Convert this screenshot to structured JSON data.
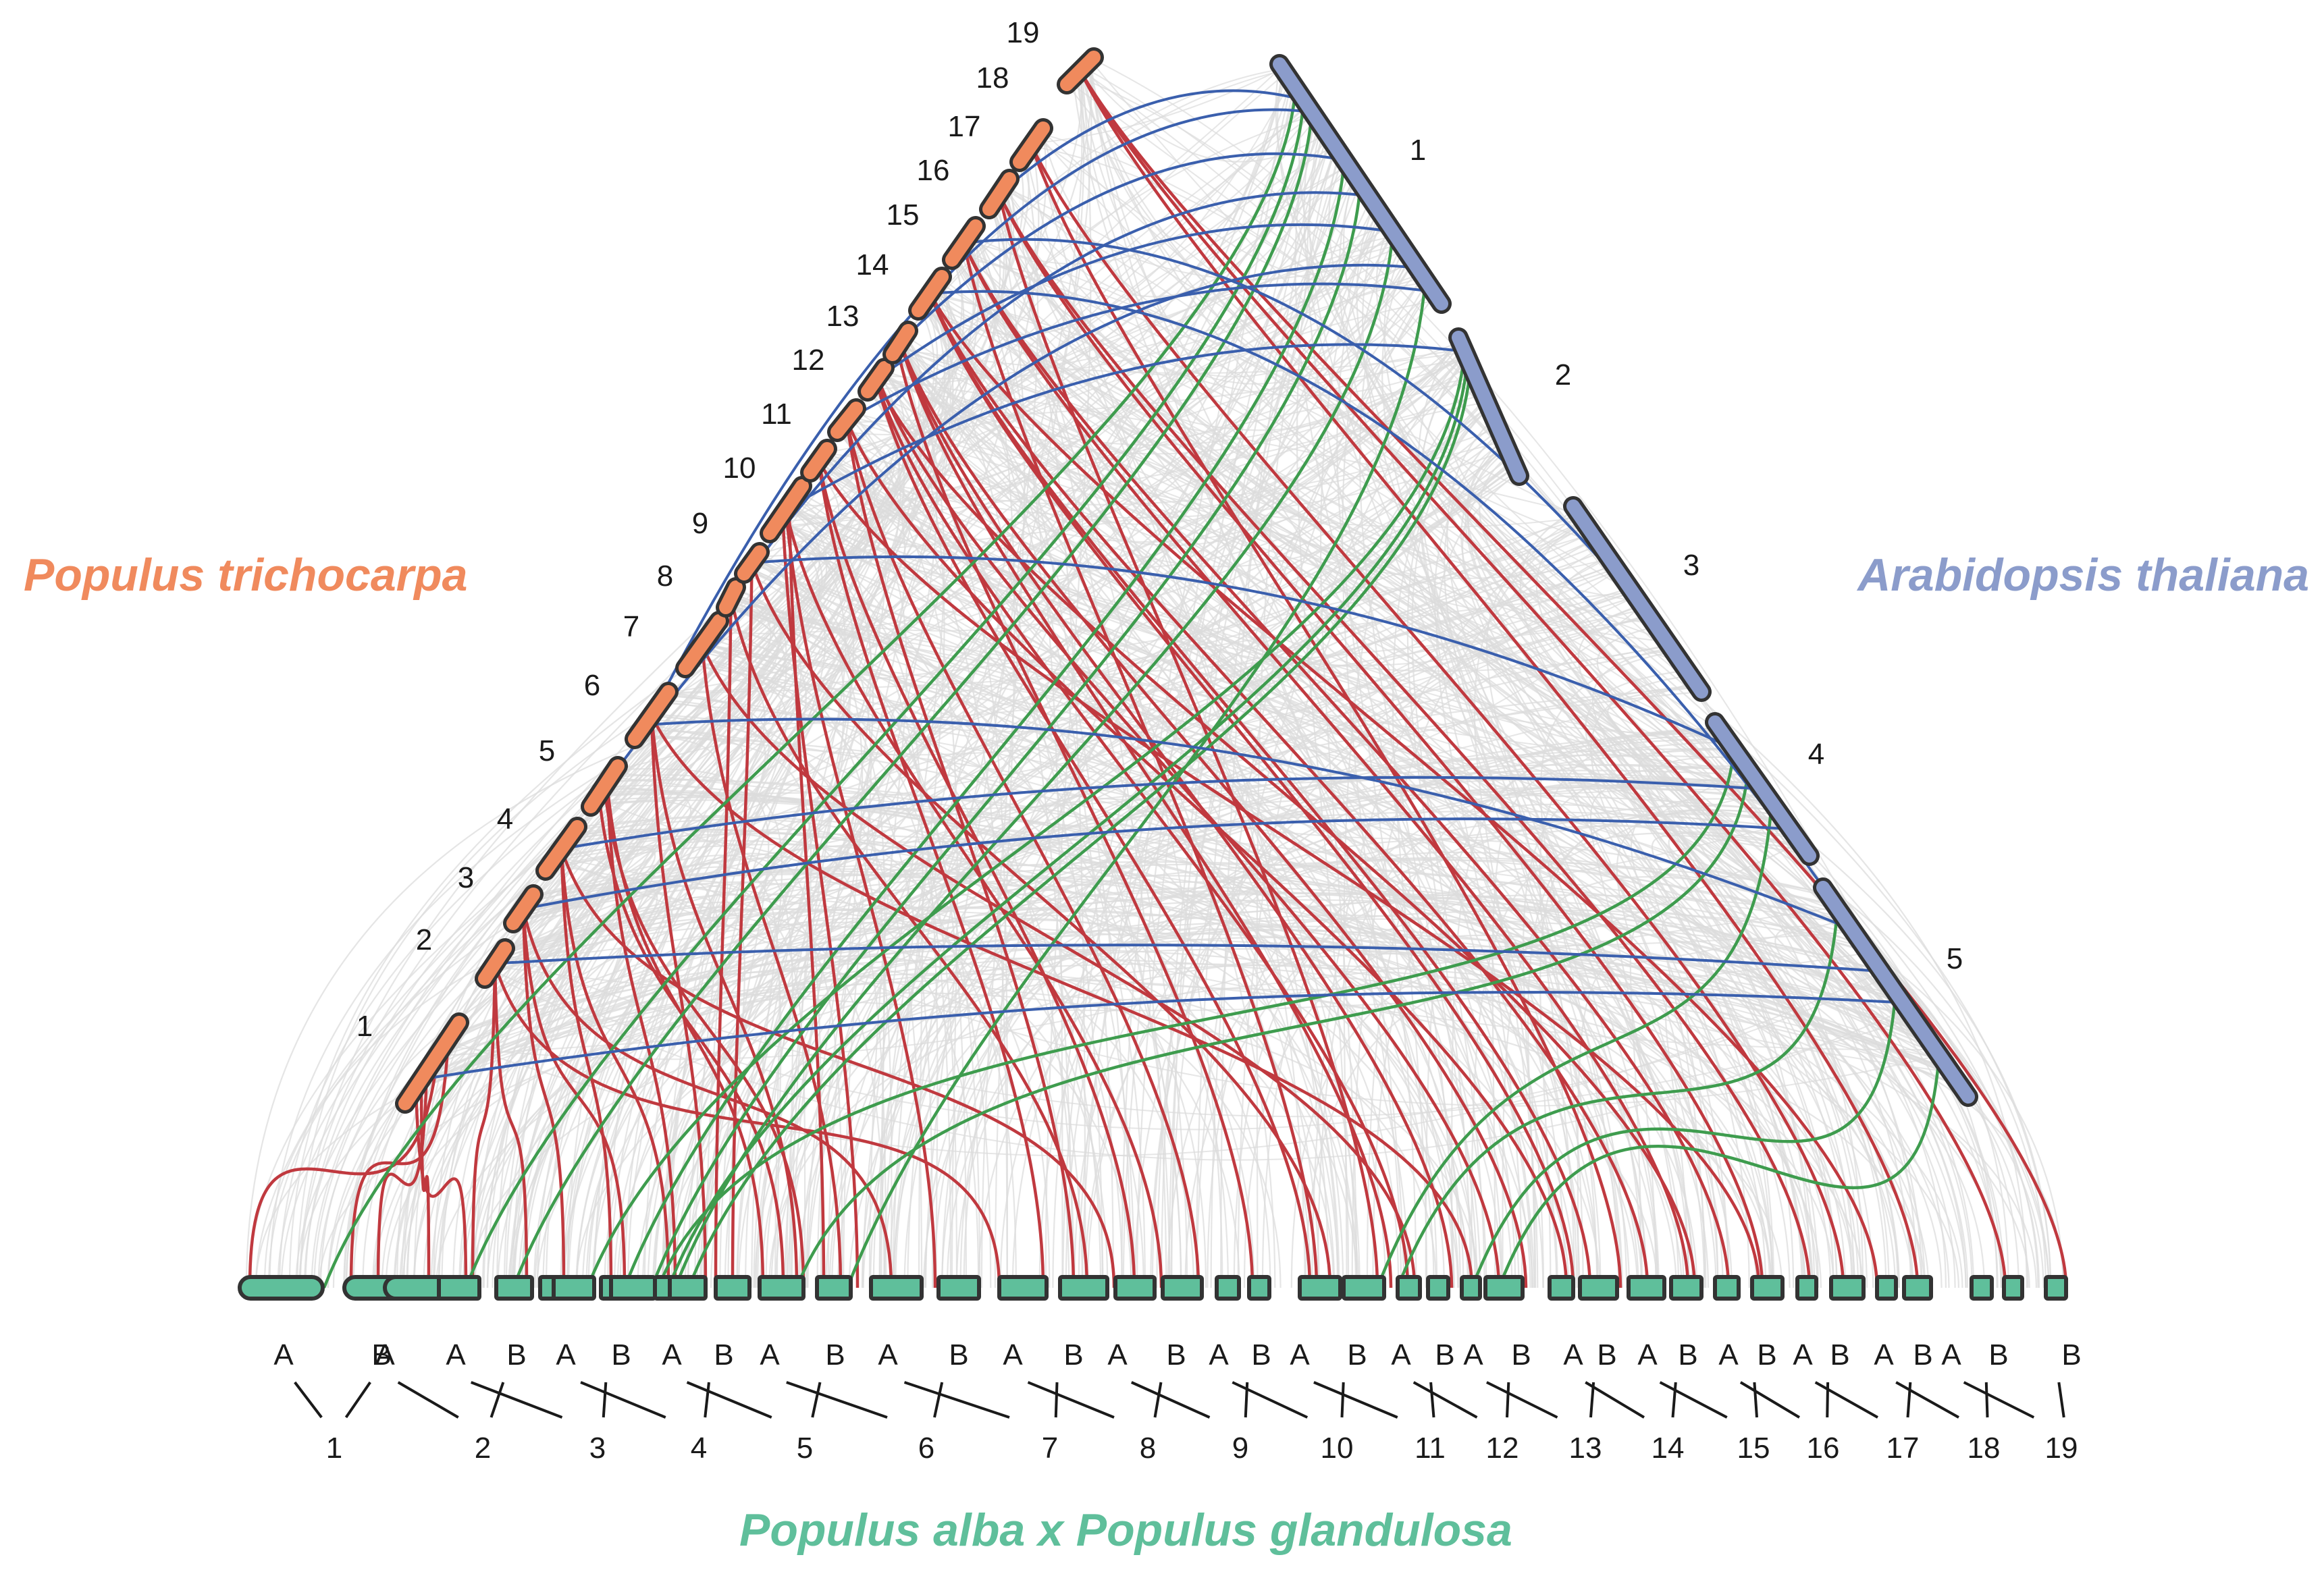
{
  "species": {
    "left": "Populus trichocarpa",
    "right": "Arabidopsis thaliana",
    "bottom": "Populus alba x Populus glandulosa"
  },
  "colors": {
    "trichocarpa": "#f08a5d",
    "arabidopsis": "#8b9ccb",
    "alba_glandulosa": "#5fbf9b",
    "background_links": "#dcdcdc",
    "red_links": "#c0393f",
    "blue_links": "#3a5fad",
    "green_links": "#3e9c4e",
    "chromosome_outline": "#333333"
  },
  "trichocarpa_chromosomes": [
    "1",
    "2",
    "3",
    "4",
    "5",
    "6",
    "7",
    "8",
    "9",
    "10",
    "11",
    "12",
    "13",
    "14",
    "15",
    "16",
    "17",
    "18",
    "19"
  ],
  "arabidopsis_chromosomes": [
    "1",
    "2",
    "3",
    "4",
    "5"
  ],
  "subgenome_labels": {
    "a": "A",
    "b": "B"
  },
  "alba_glandulosa_chromosomes": [
    "1",
    "2",
    "3",
    "4",
    "5",
    "6",
    "7",
    "8",
    "9",
    "10",
    "11",
    "12",
    "13",
    "14",
    "15",
    "16",
    "17",
    "18",
    "19"
  ]
}
